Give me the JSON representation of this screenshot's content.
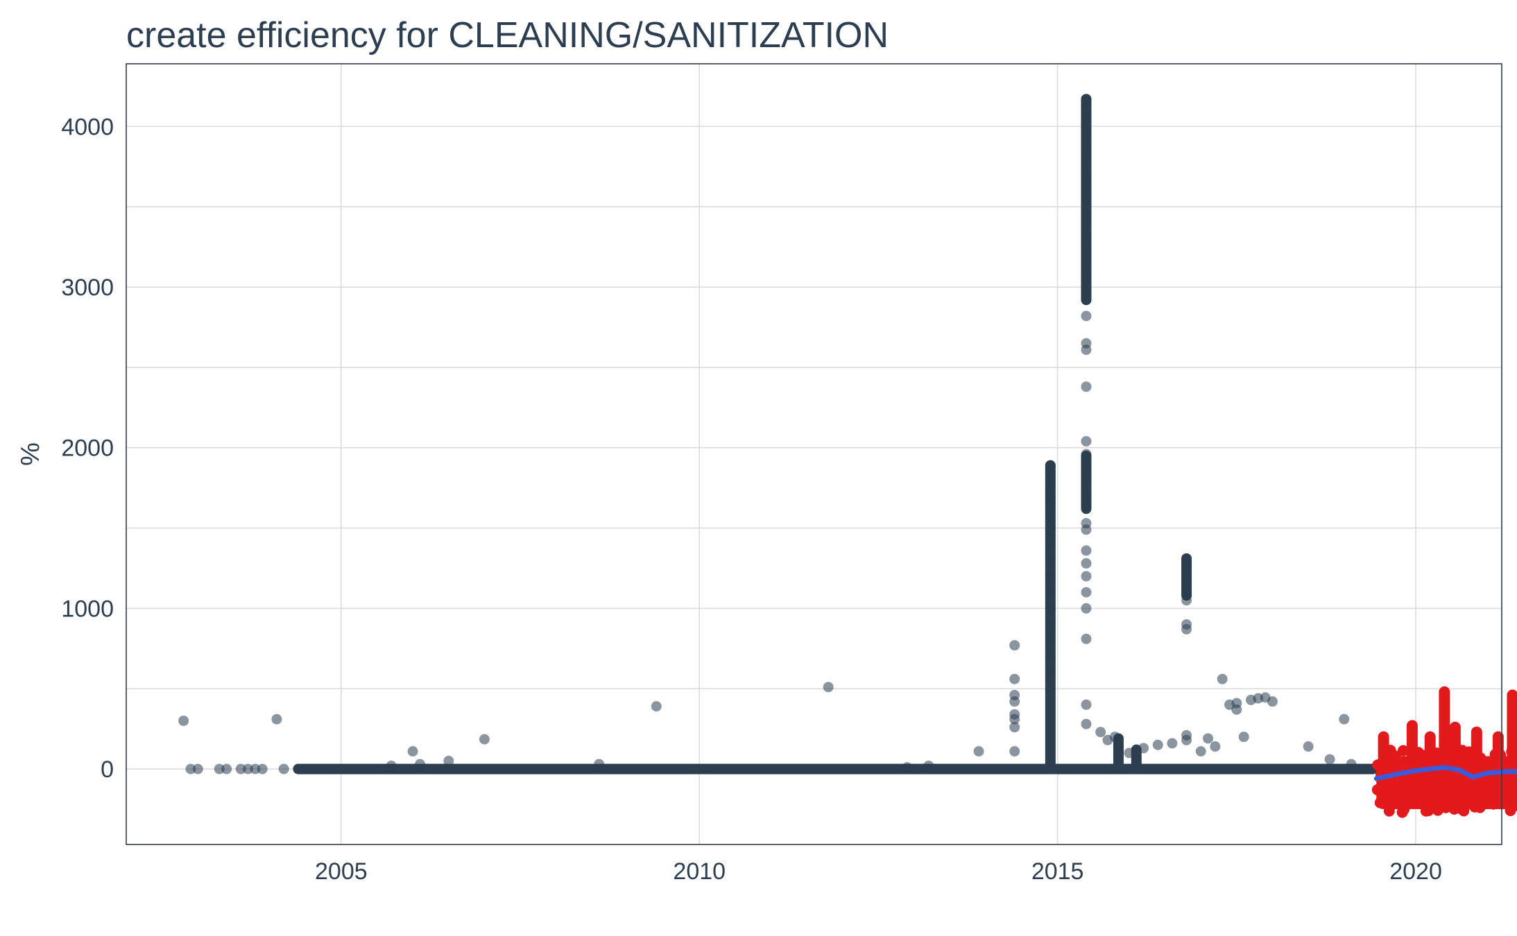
{
  "chart_data": {
    "type": "scatter",
    "title": "create efficiency for CLEANING/SANITIZATION",
    "xlabel": "",
    "ylabel": "%",
    "xlim": [
      2002.0,
      2021.2
    ],
    "ylim": [
      -470,
      4390
    ],
    "x_ticks": [
      2005,
      2010,
      2015,
      2020
    ],
    "x_tick_labels": [
      "2005",
      "2010",
      "2015",
      "2020"
    ],
    "y_ticks": [
      0,
      1000,
      2000,
      3000,
      4000
    ],
    "y_tick_labels": [
      "0",
      "1000",
      "2000",
      "3000",
      "4000"
    ],
    "y_minor_gridlines": [
      -500,
      500,
      1500,
      2500,
      3500
    ],
    "grid": true,
    "legend": "none",
    "colors": {
      "history_points": "#2c3e50",
      "forecast_points": "#e31a1c",
      "trend_line": "#3b5bdb",
      "grid": "#dcdcdc",
      "text": "#2c3e50"
    },
    "series": [
      {
        "type": "scatter",
        "color": "#2c3e50",
        "opacity": 0.55,
        "x": [
          2002.8,
          2002.9,
          2003.0,
          2003.3,
          2003.4,
          2003.6,
          2003.7,
          2003.8,
          2003.9,
          2004.1,
          2004.2,
          2005.7,
          2006.0,
          2006.1,
          2006.5,
          2007.0,
          2008.6,
          2009.4,
          2011.8,
          2012.9,
          2013.2,
          2013.9,
          2014.4,
          2014.4,
          2014.4,
          2014.4,
          2014.4,
          2014.4,
          2014.4,
          2014.4
        ],
        "y": [
          300,
          0,
          0,
          0,
          0,
          0,
          0,
          0,
          0,
          310,
          0,
          20,
          110,
          30,
          50,
          185,
          30,
          390,
          510,
          10,
          20,
          110,
          770,
          560,
          460,
          420,
          340,
          310,
          260,
          110
        ]
      },
      {
        "type": "scatter",
        "color": "#2c3e50",
        "opacity": 0.55,
        "x": [
          2014.9,
          2014.9,
          2014.9,
          2014.9,
          2014.9,
          2014.9,
          2014.9,
          2014.9,
          2014.9,
          2014.9,
          2014.9,
          2014.9,
          2014.9,
          2014.9,
          2014.9,
          2014.9,
          2014.9,
          2014.9,
          2014.9,
          2014.9
        ],
        "y": [
          1890,
          1850,
          1800,
          1750,
          1700,
          1650,
          1600,
          1550,
          1500,
          1450,
          1400,
          1300,
          1200,
          1100,
          1000,
          900,
          800,
          700,
          600,
          500
        ]
      },
      {
        "type": "scatter",
        "color": "#2c3e50",
        "opacity": 0.55,
        "x": [
          2015.4,
          2015.4,
          2015.4,
          2015.4,
          2015.4,
          2015.4,
          2015.4,
          2015.4,
          2015.4,
          2015.4,
          2015.4,
          2015.4,
          2015.4,
          2015.4,
          2015.4,
          2015.4,
          2015.4,
          2015.4,
          2015.4,
          2015.4,
          2015.4,
          2015.4,
          2015.4,
          2015.4,
          2015.4,
          2015.4,
          2015.4,
          2015.4,
          2015.4,
          2015.4,
          2015.4,
          2015.4,
          2015.4,
          2015.4,
          2015.4,
          2015.4,
          2015.4,
          2015.4,
          2015.4,
          2015.4
        ],
        "y": [
          4170,
          4150,
          4050,
          4000,
          3950,
          3900,
          3850,
          3800,
          3700,
          3650,
          3600,
          3550,
          3450,
          3400,
          3350,
          3300,
          3200,
          3100,
          3050,
          3000,
          2950,
          2820,
          2650,
          2610,
          2380,
          2040,
          1960,
          1900,
          1850,
          1800,
          1700,
          1650,
          1530,
          1490,
          1360,
          1280,
          1200,
          1100,
          1000,
          810
        ]
      },
      {
        "type": "scatter",
        "color": "#2c3e50",
        "opacity": 0.55,
        "x": [
          2015.4,
          2015.4,
          2015.6,
          2015.7,
          2015.8,
          2016.0,
          2016.2,
          2016.4,
          2016.6,
          2016.8,
          2016.8,
          2016.8,
          2016.8,
          2016.8,
          2016.8,
          2016.8,
          2016.8,
          2016.8,
          2016.8,
          2016.8,
          2017.0,
          2017.1,
          2017.2,
          2017.3,
          2017.4,
          2017.5,
          2017.5,
          2017.6,
          2017.7,
          2017.8,
          2017.9,
          2018.0,
          2018.5,
          2018.8,
          2019.0,
          2019.1
        ],
        "y": [
          400,
          280,
          230,
          180,
          200,
          100,
          130,
          150,
          160,
          1310,
          1280,
          1250,
          1200,
          1150,
          1100,
          1050,
          900,
          870,
          180,
          210,
          110,
          190,
          140,
          560,
          400,
          410,
          370,
          200,
          430,
          440,
          445,
          420,
          140,
          60,
          310,
          30
        ]
      }
    ],
    "history_baseline": {
      "x_start": 2004.4,
      "x_end": 2019.4,
      "y": 0
    },
    "history_columns": [
      {
        "x": 2014.9,
        "y_from": 0,
        "y_to": 1890
      },
      {
        "x": 2015.4,
        "y_from": 1620,
        "y_to": 1950
      },
      {
        "x": 2015.4,
        "y_from": 2920,
        "y_to": 4170
      },
      {
        "x": 2016.8,
        "y_from": 1080,
        "y_to": 1310
      },
      {
        "x": 2015.85,
        "y_from": 0,
        "y_to": 190
      },
      {
        "x": 2016.1,
        "y_from": 0,
        "y_to": 120
      }
    ],
    "forecast": {
      "color": "#e31a1c",
      "x_range": [
        2019.45,
        2021.65
      ],
      "y_band": [
        -250,
        80
      ],
      "spikes": [
        {
          "x": 2019.55,
          "y": 200
        },
        {
          "x": 2019.95,
          "y": 270
        },
        {
          "x": 2020.2,
          "y": 200
        },
        {
          "x": 2020.4,
          "y": 480
        },
        {
          "x": 2020.55,
          "y": 260
        },
        {
          "x": 2020.85,
          "y": 230
        },
        {
          "x": 2021.15,
          "y": 200
        },
        {
          "x": 2021.35,
          "y": 460
        },
        {
          "x": 2021.55,
          "y": 100
        }
      ]
    },
    "trend_line": {
      "color": "#3b5bdb",
      "x": [
        2019.45,
        2019.7,
        2020.0,
        2020.4,
        2020.6,
        2020.8,
        2021.0,
        2021.3,
        2021.65
      ],
      "y": [
        -60,
        -35,
        -10,
        10,
        -5,
        -50,
        -25,
        -15,
        -25
      ]
    }
  }
}
